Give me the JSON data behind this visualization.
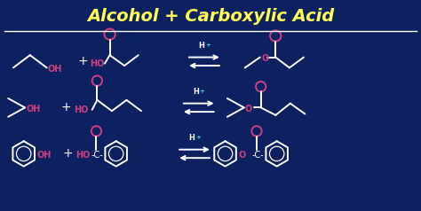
{
  "background_color": "#0d2060",
  "title": "Alcohol + Carboxylic Acid",
  "title_color": "#ffff55",
  "white_color": "#ffffff",
  "pink_color": "#d04080",
  "cyan_color": "#44ccff",
  "fig_width": 4.74,
  "fig_height": 2.38,
  "dpi": 100,
  "xlim": [
    0,
    10
  ],
  "ylim": [
    0,
    5
  ]
}
